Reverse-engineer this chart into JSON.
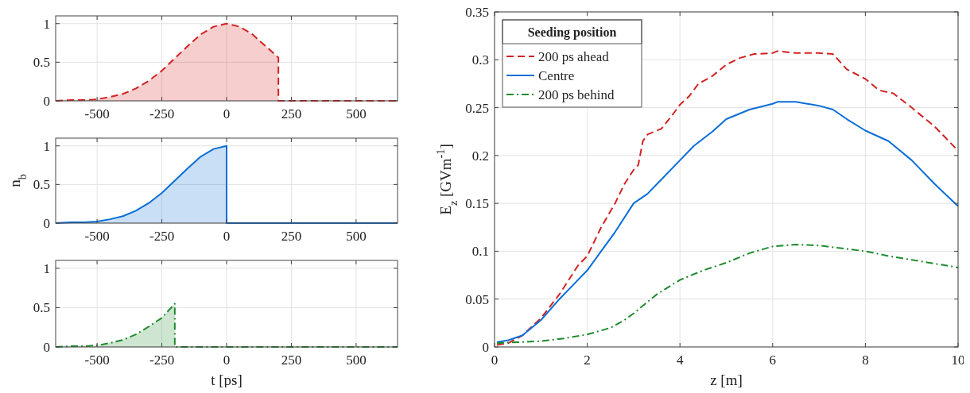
{
  "chart_data": [
    {
      "type": "area",
      "xlim": [
        -660,
        660
      ],
      "xticks": [
        -500,
        -250,
        0,
        250,
        500
      ],
      "ylim": [
        0,
        1.1
      ],
      "yticks": [
        0,
        0.5,
        1
      ],
      "grid": true,
      "line_style": "dashed",
      "series": [
        {
          "color": "#d42121",
          "x": [
            -660,
            -600,
            -550,
            -500,
            -450,
            -400,
            -350,
            -300,
            -250,
            -200,
            -150,
            -100,
            -50,
            0,
            50,
            100,
            150,
            200,
            200,
            250,
            300,
            400,
            500,
            600,
            660
          ],
          "values": [
            0,
            0.01,
            0.01,
            0.02,
            0.05,
            0.09,
            0.16,
            0.26,
            0.39,
            0.55,
            0.71,
            0.86,
            0.96,
            1,
            0.96,
            0.86,
            0.71,
            0.56,
            0,
            0,
            0,
            0,
            0,
            0,
            0
          ]
        }
      ]
    },
    {
      "type": "area",
      "xlim": [
        -660,
        660
      ],
      "xticks": [
        -500,
        -250,
        0,
        250,
        500
      ],
      "ylim": [
        0,
        1.1
      ],
      "yticks": [
        0,
        0.5,
        1
      ],
      "grid": true,
      "line_style": "solid",
      "ylabel": "n$_{b}$",
      "series": [
        {
          "color": "#0a6ed8",
          "x": [
            -660,
            -600,
            -550,
            -500,
            -450,
            -400,
            -350,
            -300,
            -250,
            -200,
            -150,
            -100,
            -50,
            0,
            0,
            100,
            200,
            300,
            400,
            500,
            600,
            660
          ],
          "values": [
            0,
            0.01,
            0.01,
            0.02,
            0.05,
            0.09,
            0.16,
            0.26,
            0.39,
            0.55,
            0.71,
            0.86,
            0.96,
            1,
            0,
            0,
            0,
            0,
            0,
            0,
            0,
            0
          ]
        }
      ]
    },
    {
      "type": "area",
      "xlim": [
        -660,
        660
      ],
      "xticks": [
        -500,
        -250,
        0,
        250,
        500
      ],
      "ylim": [
        0,
        1.1
      ],
      "yticks": [
        0,
        0.5,
        1
      ],
      "grid": true,
      "line_style": "dashdot",
      "xlabel": "t [ps]",
      "series": [
        {
          "color": "#1e8a2e",
          "x": [
            -660,
            -600,
            -550,
            -500,
            -450,
            -400,
            -350,
            -300,
            -250,
            -200,
            -200,
            -100,
            0,
            100,
            200,
            300,
            400,
            500,
            600,
            660
          ],
          "values": [
            0,
            0.01,
            0.01,
            0.02,
            0.05,
            0.09,
            0.16,
            0.26,
            0.37,
            0.55,
            0,
            0,
            0,
            0,
            0,
            0,
            0,
            0,
            0,
            0
          ]
        }
      ]
    },
    {
      "type": "line",
      "xlim": [
        0,
        10
      ],
      "xticks": [
        0,
        2,
        4,
        6,
        8,
        10
      ],
      "ylim": [
        0,
        0.35
      ],
      "yticks": [
        0,
        0.05,
        0.1,
        0.15,
        0.2,
        0.25,
        0.3,
        0.35
      ],
      "grid": true,
      "legend": "top left",
      "legend_title": "Seeding position",
      "xlabel": "z [m]",
      "ylabel": "E$_{z}$ [GVm$^{-1}$]",
      "series": [
        {
          "name": "200 ps ahead",
          "color": "#d42121",
          "line_style": "dashed",
          "x": [
            0.05,
            0.3,
            0.6,
            1,
            1.4,
            1.8,
            2,
            2.3,
            2.6,
            2.8,
            3,
            3.1,
            3.2,
            3.3,
            3.6,
            3.8,
            4,
            4.2,
            4.4,
            4.7,
            5,
            5.3,
            5.6,
            6,
            6.1,
            6.5,
            7,
            7.3,
            7.6,
            8,
            8.3,
            8.6,
            9,
            9.5,
            10
          ],
          "values": [
            0.002,
            0.004,
            0.012,
            0.03,
            0.055,
            0.085,
            0.095,
            0.125,
            0.15,
            0.17,
            0.185,
            0.19,
            0.215,
            0.222,
            0.228,
            0.24,
            0.253,
            0.262,
            0.275,
            0.283,
            0.295,
            0.302,
            0.306,
            0.307,
            0.309,
            0.307,
            0.307,
            0.306,
            0.29,
            0.28,
            0.268,
            0.265,
            0.25,
            0.23,
            0.205
          ]
        },
        {
          "name": "Centre",
          "color": "#0a6ed8",
          "line_style": "solid",
          "x": [
            0.05,
            0.3,
            0.6,
            1,
            1.4,
            1.7,
            2,
            2.3,
            2.6,
            3,
            3.3,
            3.6,
            4,
            4.3,
            4.7,
            5,
            5.5,
            6,
            6.1,
            6.5,
            7,
            7.3,
            7.6,
            8,
            8.5,
            9,
            9.5,
            10
          ],
          "values": [
            0.005,
            0.007,
            0.012,
            0.028,
            0.05,
            0.065,
            0.08,
            0.1,
            0.12,
            0.15,
            0.16,
            0.175,
            0.195,
            0.21,
            0.225,
            0.238,
            0.248,
            0.254,
            0.256,
            0.256,
            0.252,
            0.248,
            0.238,
            0.226,
            0.215,
            0.195,
            0.17,
            0.147
          ]
        },
        {
          "name": "200 ps behind",
          "color": "#1e8a2e",
          "line_style": "dashdot",
          "x": [
            0.05,
            0.5,
            1,
            1.5,
            2,
            2.5,
            2.8,
            3,
            3.5,
            4,
            4.5,
            5,
            5.5,
            6,
            6.5,
            7,
            7.5,
            8,
            8.5,
            9,
            9.5,
            10
          ],
          "values": [
            0.004,
            0.005,
            0.006,
            0.009,
            0.013,
            0.02,
            0.028,
            0.035,
            0.055,
            0.07,
            0.08,
            0.088,
            0.098,
            0.105,
            0.107,
            0.106,
            0.103,
            0.1,
            0.095,
            0.091,
            0.087,
            0.083
          ]
        }
      ]
    }
  ]
}
